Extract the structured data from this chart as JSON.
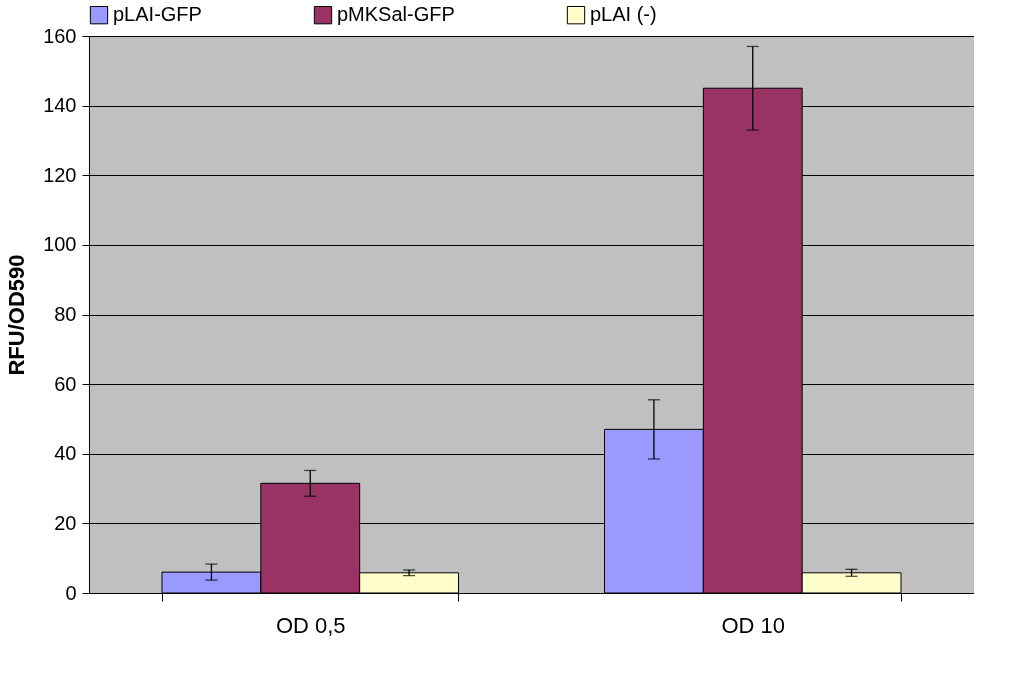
{
  "chart_data": {
    "type": "bar",
    "ylabel": "RFU/OD590",
    "categories": [
      "OD  0,5",
      "OD 10"
    ],
    "series": [
      {
        "name": "pLAI-GFP",
        "color": "#9999ff",
        "values": [
          6,
          47
        ],
        "errors": [
          2.3,
          8.5
        ]
      },
      {
        "name": "pMKSal-GFP",
        "color": "#993366",
        "values": [
          31.5,
          145
        ],
        "errors": [
          3.7,
          12
        ]
      },
      {
        "name": "pLAI (-)",
        "color": "#ffffcc",
        "values": [
          5.8,
          5.8
        ],
        "errors": [
          0.8,
          1
        ]
      }
    ],
    "ylim": [
      0,
      160
    ],
    "yticks": [
      0,
      20,
      40,
      60,
      80,
      100,
      120,
      140,
      160
    ],
    "grid": "y",
    "legend": "top"
  }
}
